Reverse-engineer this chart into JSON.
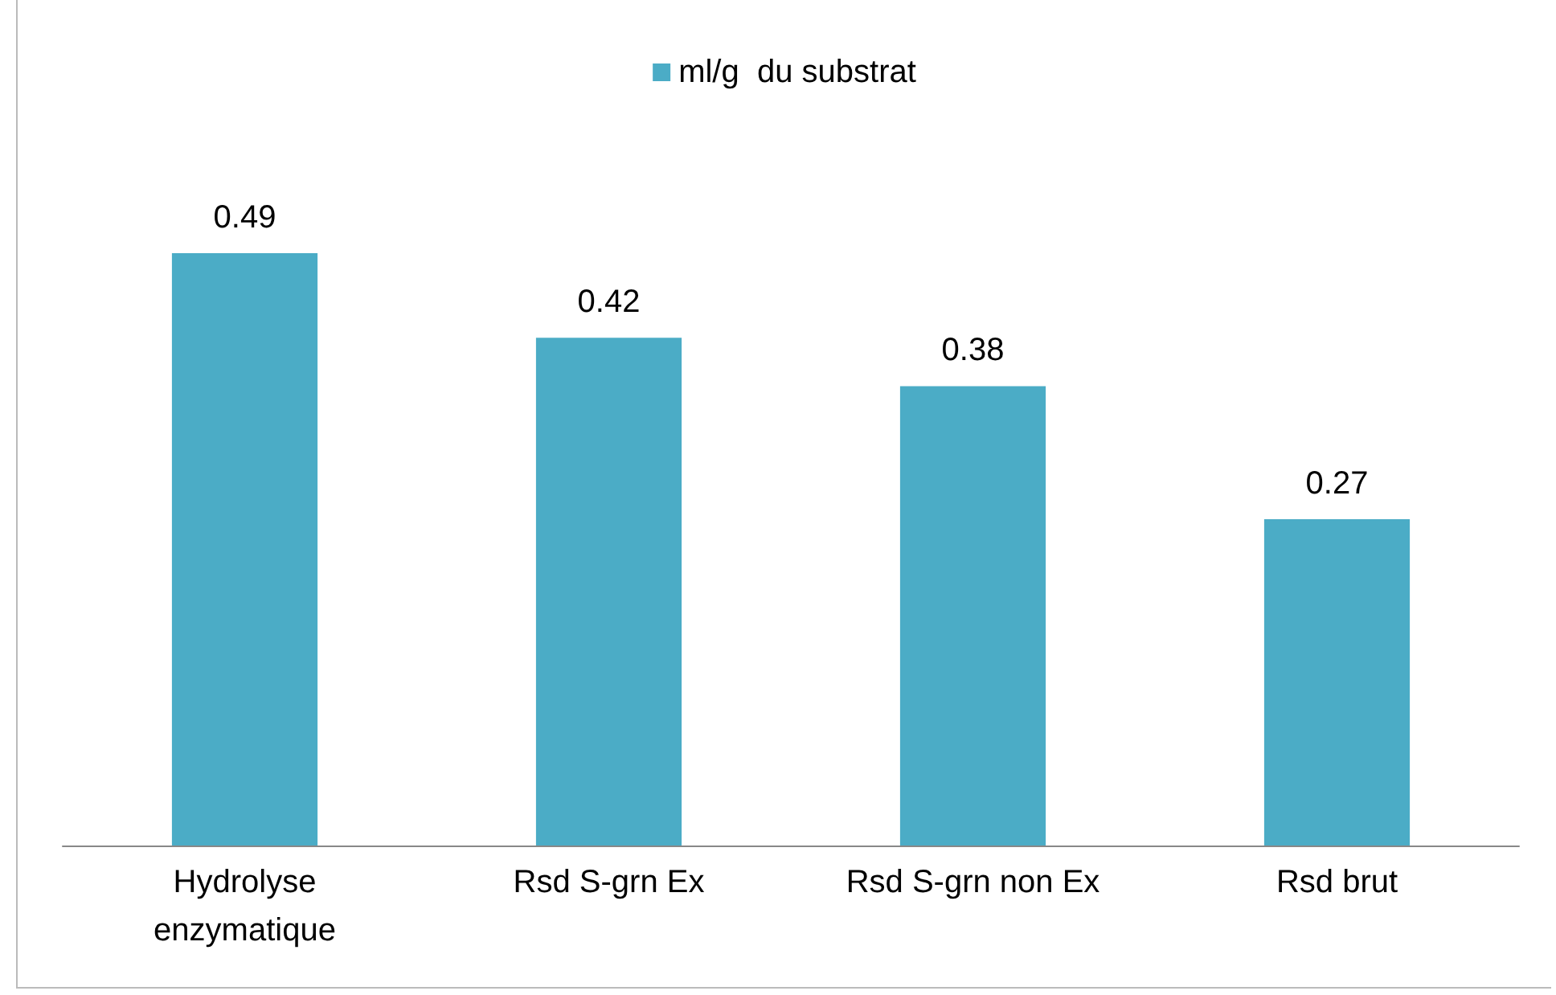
{
  "chart_data": {
    "type": "bar",
    "categories": [
      "Hydrolyse\nenzymatique",
      "Rsd S-grn Ex",
      "Rsd S-grn non Ex",
      "Rsd brut"
    ],
    "series": [
      {
        "name": "ml/g  du substrat",
        "color": "#4bacc6",
        "values": [
          0.49,
          0.42,
          0.38,
          0.27
        ]
      }
    ],
    "data_labels": true,
    "legend": "top"
  }
}
